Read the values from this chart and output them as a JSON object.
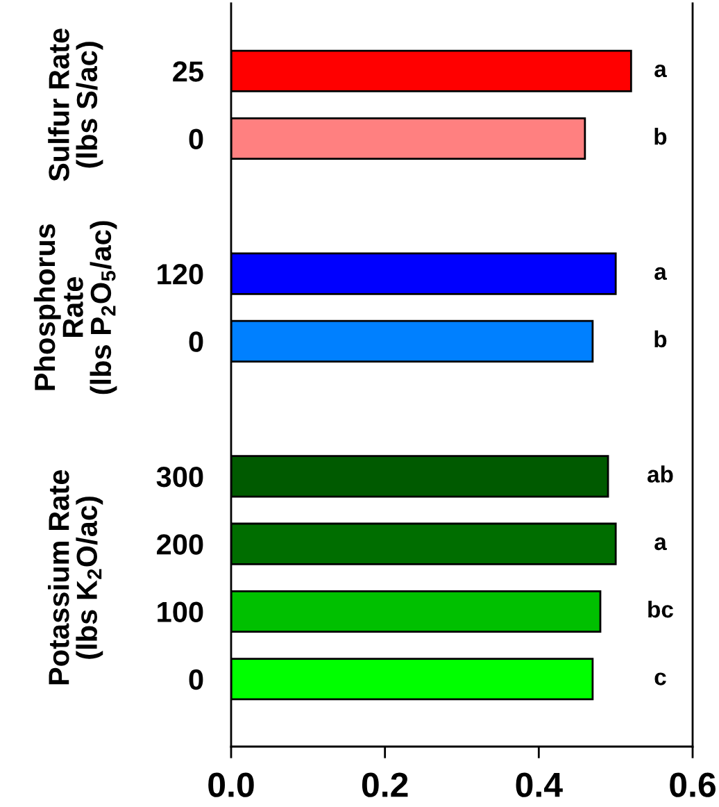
{
  "chart_data": {
    "type": "bar",
    "orientation": "horizontal",
    "categories": [
      "25",
      "0",
      null,
      "120",
      "0",
      null,
      "300",
      "200",
      "100",
      "0"
    ],
    "values": [
      0.52,
      0.46,
      null,
      0.5,
      0.47,
      null,
      0.49,
      0.5,
      0.48,
      0.47
    ],
    "colors": [
      "#ff0000",
      "#ff8080",
      null,
      "#0000ff",
      "#0080ff",
      null,
      "#005a00",
      "#006e00",
      "#00c000",
      "#00ff00"
    ],
    "value_labels": [
      "a",
      "b",
      null,
      "a",
      "b",
      null,
      "ab",
      "a",
      "bc",
      "c"
    ],
    "annotations": [
      "Sulfur Rate\n(lbs S/ac)",
      "Phosphorus\nRate\n(lbs P$_{2}$O$_{5}$/ac)",
      "Potassium Rate\n(lbs K$_{2}$O/ac)"
    ],
    "xlim": [
      0.0,
      0.6
    ],
    "xticks": [
      {
        "value": 0.0,
        "label": "0.0"
      },
      {
        "value": 0.2,
        "label": "0.2"
      },
      {
        "value": 0.4,
        "label": "0.4"
      },
      {
        "value": 0.6,
        "label": "0.6"
      }
    ],
    "grid": false,
    "legend": false
  }
}
